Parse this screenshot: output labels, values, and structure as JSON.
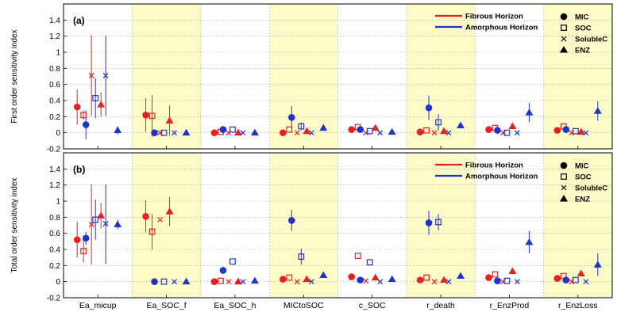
{
  "colors": {
    "fibrous": "#e8201e",
    "amorphous": "#2034c8",
    "shade": "#fdfbc8",
    "grid": "#9a9a9a"
  },
  "chart_data": {
    "type": "scatter",
    "categories": [
      "Ea_micup",
      "Ea_SOC_f",
      "Ea_SOC_h",
      "MICtoSOC",
      "c_SOC",
      "r_death",
      "r_EnzProd",
      "r_EnzLoss"
    ],
    "shaded_categories": [
      "Ea_SOC_f",
      "MICtoSOC",
      "r_death",
      "r_EnzLoss"
    ],
    "horizons": [
      "Fibrous Horizon",
      "Amorphous Horizon"
    ],
    "variables": [
      "MIC",
      "SOC",
      "SolubleC",
      "ENZ"
    ],
    "ylim": [
      -0.2,
      1.6
    ],
    "yticks": [
      "-0.2",
      "0",
      "0.2",
      "0.4",
      "0.6",
      "0.8",
      "1",
      "1.2",
      "1.4"
    ],
    "panels": [
      {
        "label": "(a)",
        "ylabel": "First order sensitivity index",
        "legend": [
          "Fibrous Horizon",
          "Amorphous Horizon"
        ],
        "variable_legend": [
          "MIC",
          "SOC",
          "SolubleC",
          "ENZ"
        ],
        "values": {
          "Fibrous Horizon": {
            "MIC": [
              0.32,
              0.22,
              0.0,
              0.0,
              0.04,
              0.01,
              0.04,
              0.03
            ],
            "SOC": [
              0.22,
              0.21,
              0.01,
              0.04,
              0.07,
              0.03,
              0.06,
              0.08
            ],
            "SolubleC": [
              0.71,
              0.0,
              0.0,
              0.0,
              0.0,
              0.0,
              0.0,
              0.0
            ],
            "ENZ": [
              0.35,
              0.15,
              0.0,
              0.02,
              0.06,
              0.02,
              0.08,
              0.01
            ]
          },
          "Amorphous Horizon": {
            "MIC": [
              0.1,
              0.0,
              0.04,
              0.19,
              0.04,
              0.31,
              0.03,
              0.04
            ],
            "SOC": [
              0.43,
              0.0,
              0.04,
              0.08,
              0.02,
              0.13,
              0.0,
              0.02
            ],
            "SolubleC": [
              0.71,
              0.0,
              0.0,
              0.0,
              0.0,
              0.0,
              0.0,
              0.0
            ],
            "ENZ": [
              0.03,
              0.0,
              0.0,
              0.06,
              0.01,
              0.09,
              0.25,
              0.27
            ]
          }
        },
        "errors": {
          "Fibrous Horizon": {
            "MIC": [
              0.22,
              0.21,
              0.0,
              0.0,
              0.0,
              0.0,
              0.0,
              0.0
            ],
            "SOC": [
              0.06,
              0.26,
              0.0,
              0.0,
              0.0,
              0.0,
              0.0,
              0.0
            ],
            "SolubleC": [
              0.5,
              0.0,
              0.0,
              0.0,
              0.0,
              0.0,
              0.0,
              0.0
            ],
            "ENZ": [
              0.15,
              0.19,
              0.0,
              0.0,
              0.0,
              0.0,
              0.0,
              0.0
            ]
          },
          "Amorphous Horizon": {
            "MIC": [
              0.18,
              0.0,
              0.0,
              0.14,
              0.0,
              0.15,
              0.0,
              0.0
            ],
            "SOC": [
              0.25,
              0.0,
              0.0,
              0.05,
              0.0,
              0.1,
              0.0,
              0.0
            ],
            "SolubleC": [
              0.5,
              0.0,
              0.0,
              0.0,
              0.0,
              0.0,
              0.0,
              0.0
            ],
            "ENZ": [
              0.05,
              0.0,
              0.0,
              0.0,
              0.0,
              0.0,
              0.12,
              0.12
            ]
          }
        }
      },
      {
        "label": "(b)",
        "ylabel": "Total order sensitivity index",
        "legend": [
          "Fibrous Horizon",
          "Amorphous Horizon"
        ],
        "variable_legend": [
          "MIC",
          "SOC",
          "SolubleC",
          "ENZ"
        ],
        "values": {
          "Fibrous Horizon": {
            "MIC": [
              0.52,
              0.81,
              0.0,
              0.03,
              0.06,
              0.02,
              0.05,
              0.04
            ],
            "SOC": [
              0.38,
              0.62,
              0.01,
              0.05,
              0.32,
              0.05,
              0.09,
              0.07
            ],
            "SolubleC": [
              0.71,
              0.77,
              0.0,
              0.0,
              0.01,
              0.0,
              0.0,
              0.0
            ],
            "ENZ": [
              0.82,
              0.87,
              0.0,
              0.03,
              0.05,
              0.02,
              0.13,
              0.1
            ]
          },
          "Amorphous Horizon": {
            "MIC": [
              0.54,
              0.0,
              0.14,
              0.76,
              0.02,
              0.73,
              0.01,
              0.02
            ],
            "SOC": [
              0.77,
              0.0,
              0.25,
              0.31,
              0.24,
              0.74,
              0.01,
              0.02
            ],
            "SolubleC": [
              0.72,
              0.0,
              0.0,
              0.0,
              0.0,
              0.0,
              0.0,
              0.0
            ],
            "ENZ": [
              0.71,
              0.0,
              0.01,
              0.08,
              0.03,
              0.07,
              0.49,
              0.21
            ]
          }
        },
        "errors": {
          "Fibrous Horizon": {
            "MIC": [
              0.22,
              0.2,
              0.0,
              0.0,
              0.0,
              0.0,
              0.0,
              0.0
            ],
            "SOC": [
              0.14,
              0.22,
              0.0,
              0.0,
              0.0,
              0.0,
              0.0,
              0.0
            ],
            "SolubleC": [
              0.5,
              0.0,
              0.0,
              0.0,
              0.0,
              0.0,
              0.0,
              0.0
            ],
            "ENZ": [
              0.16,
              0.18,
              0.0,
              0.0,
              0.0,
              0.0,
              0.0,
              0.0
            ]
          },
          "Amorphous Horizon": {
            "MIC": [
              0.08,
              0.0,
              0.0,
              0.13,
              0.0,
              0.15,
              0.0,
              0.0
            ],
            "SOC": [
              0.25,
              0.0,
              0.0,
              0.1,
              0.0,
              0.1,
              0.0,
              0.0
            ],
            "SolubleC": [
              0.5,
              0.0,
              0.0,
              0.0,
              0.0,
              0.0,
              0.0,
              0.0
            ],
            "ENZ": [
              0.06,
              0.0,
              0.0,
              0.0,
              0.0,
              0.0,
              0.14,
              0.14
            ]
          }
        }
      }
    ]
  }
}
